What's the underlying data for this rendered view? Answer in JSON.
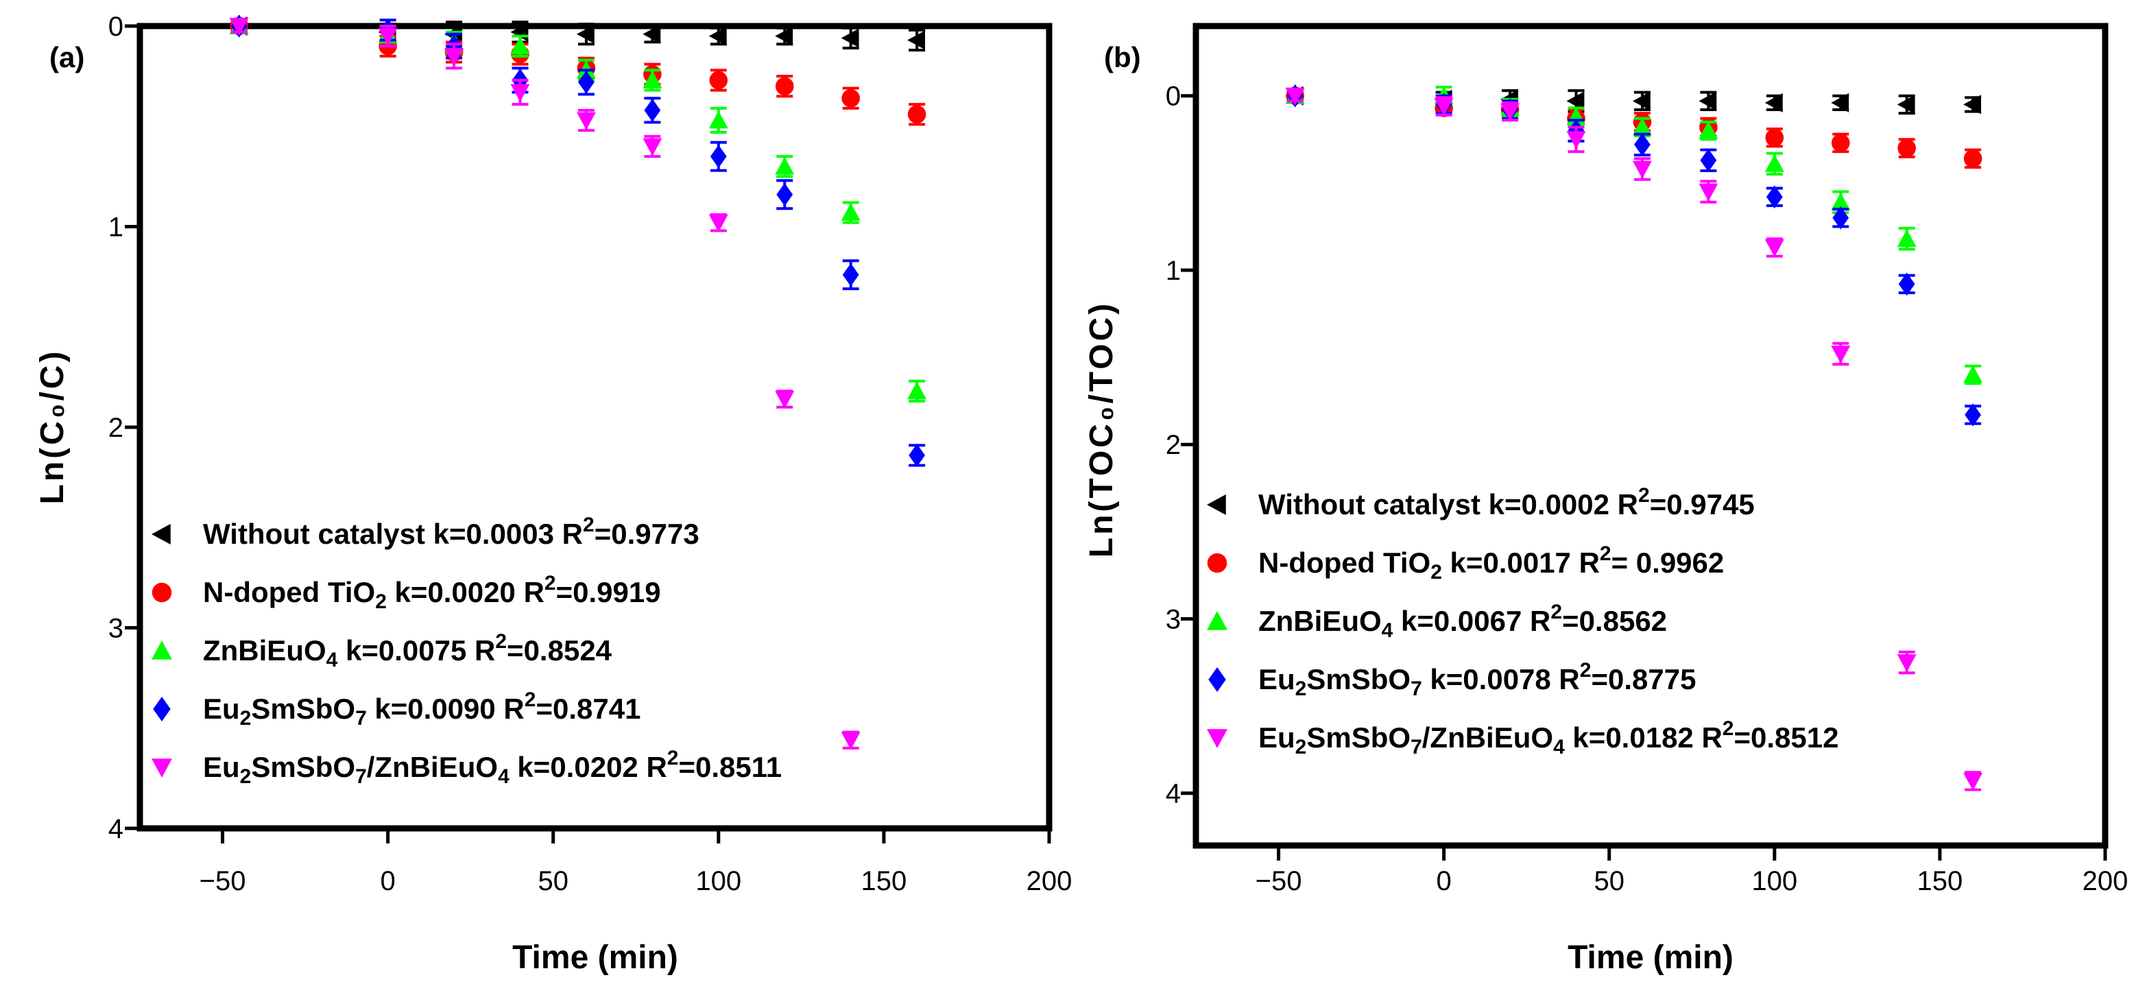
{
  "chart_data": [
    {
      "panel_label": "(a)",
      "type": "scatter",
      "xlabel": "Time (min)",
      "ylabel": "Ln(C₀/C)",
      "xlim": [
        -75,
        200
      ],
      "ylim": [
        0,
        4
      ],
      "y_inverted": true,
      "x_ticks": [
        -50,
        0,
        50,
        100,
        150,
        200
      ],
      "x_tick_labels": [
        "−50",
        "0",
        "50",
        "100",
        "150",
        "200"
      ],
      "y_ticks": [
        0,
        1,
        2,
        3,
        4
      ],
      "y_tick_labels": [
        "0",
        "1",
        "2",
        "3",
        "4"
      ],
      "grid": false,
      "legend_position": "lower-left",
      "x": [
        -45,
        0,
        20,
        40,
        60,
        80,
        100,
        120,
        140,
        160
      ],
      "series": [
        {
          "name": "Without catalyst",
          "name_parts": [
            [
              "Without catalyst",
              ""
            ]
          ],
          "k": "k=0.0003",
          "r2": "0.9773",
          "r2_text": "=0.9773",
          "marker": "triangle-left",
          "color": "#000000",
          "values": [
            0,
            0.03,
            0.04,
            0.03,
            0.04,
            0.04,
            0.05,
            0.05,
            0.06,
            0.07
          ],
          "errors": [
            0.03,
            0.04,
            0.06,
            0.05,
            0.05,
            0.04,
            0.04,
            0.04,
            0.05,
            0.05
          ]
        },
        {
          "name": "N-doped TiO2",
          "name_parts": [
            [
              "N-doped TiO",
              ""
            ],
            [
              "2",
              "sub"
            ]
          ],
          "k": "k=0.0020",
          "r2": "0.9919",
          "r2_text": "=0.9919",
          "marker": "circle",
          "color": "#ff0000",
          "values": [
            0,
            0.1,
            0.13,
            0.14,
            0.21,
            0.24,
            0.27,
            0.3,
            0.36,
            0.44
          ],
          "errors": [
            0.03,
            0.05,
            0.05,
            0.05,
            0.05,
            0.05,
            0.05,
            0.05,
            0.05,
            0.05
          ]
        },
        {
          "name": "ZnBiEuO4",
          "name_parts": [
            [
              "ZnBiEuO",
              ""
            ],
            [
              "4",
              "sub"
            ]
          ],
          "k": "k=0.0075",
          "r2": "0.8524",
          "r2_text": "=0.8524",
          "marker": "triangle-up",
          "color": "#00ff00",
          "values": [
            0,
            0.04,
            0.08,
            0.1,
            0.22,
            0.27,
            0.47,
            0.7,
            0.93,
            1.82
          ],
          "errors": [
            0.03,
            0.04,
            0.05,
            0.05,
            0.05,
            0.05,
            0.06,
            0.05,
            0.05,
            0.05
          ]
        },
        {
          "name": "Eu2SmSbO7",
          "name_parts": [
            [
              "Eu",
              ""
            ],
            [
              "2",
              "sub"
            ],
            [
              "SmSbO",
              ""
            ],
            [
              "7",
              "sub"
            ]
          ],
          "k": "k=0.0090",
          "r2": "0.8741",
          "r2_text": "=0.8741",
          "marker": "diamond",
          "color": "#0000ff",
          "values": [
            0,
            0.02,
            0.1,
            0.27,
            0.28,
            0.42,
            0.65,
            0.84,
            1.24,
            2.14
          ],
          "errors": [
            0.03,
            0.05,
            0.06,
            0.06,
            0.06,
            0.06,
            0.07,
            0.07,
            0.07,
            0.05
          ]
        },
        {
          "name": "Eu2SmSbO7/ZnBiEuO4",
          "name_parts": [
            [
              "Eu",
              ""
            ],
            [
              "2",
              "sub"
            ],
            [
              "SmSbO",
              ""
            ],
            [
              "7",
              "sub"
            ],
            [
              "/ZnBiEuO",
              ""
            ],
            [
              "4",
              "sub"
            ]
          ],
          "k": "k=0.0202",
          "r2": "0.8511",
          "r2_text": "=0.8511",
          "marker": "triangle-down",
          "color": "#ff00ff",
          "values": [
            0,
            0.05,
            0.15,
            0.33,
            0.47,
            0.6,
            0.98,
            1.86,
            3.56,
            null
          ],
          "errors": [
            0.03,
            0.05,
            0.06,
            0.06,
            0.05,
            0.05,
            0.04,
            0.04,
            0.04,
            null
          ]
        }
      ]
    },
    {
      "panel_label": "(b)",
      "type": "scatter",
      "xlabel": "Time (min)",
      "ylabel": "Ln(TOC₀/TOC)",
      "xlim": [
        -75,
        200
      ],
      "ylim": [
        -0.4,
        4.3
      ],
      "y_inverted": true,
      "x_ticks": [
        -50,
        0,
        50,
        100,
        150,
        200
      ],
      "x_tick_labels": [
        "−50",
        "0",
        "50",
        "100",
        "150",
        "200"
      ],
      "y_ticks": [
        0,
        1,
        2,
        3,
        4
      ],
      "y_tick_labels": [
        "0",
        "1",
        "2",
        "3",
        "4"
      ],
      "grid": false,
      "legend_position": "lower-left",
      "x": [
        -45,
        0,
        20,
        40,
        60,
        80,
        100,
        120,
        140,
        160
      ],
      "series": [
        {
          "name": "Without catalyst",
          "name_parts": [
            [
              "Without catalyst",
              ""
            ]
          ],
          "k": "k=0.0002",
          "r2": "0.9745",
          "r2_text": "=0.9745",
          "marker": "triangle-left",
          "color": "#000000",
          "values": [
            0,
            0.02,
            0.02,
            0.03,
            0.03,
            0.03,
            0.04,
            0.04,
            0.05,
            0.05
          ],
          "errors": [
            0.03,
            0.04,
            0.05,
            0.06,
            0.05,
            0.05,
            0.04,
            0.04,
            0.05,
            0.04
          ]
        },
        {
          "name": "N-doped TiO2",
          "name_parts": [
            [
              "N-doped TiO",
              ""
            ],
            [
              "2",
              "sub"
            ]
          ],
          "k": "k=0.0017",
          "r2": "0.9962",
          "r2_text": "= 0.9962",
          "marker": "circle",
          "color": "#ff0000",
          "values": [
            0,
            0.07,
            0.08,
            0.13,
            0.15,
            0.18,
            0.24,
            0.27,
            0.3,
            0.36
          ],
          "errors": [
            0.03,
            0.04,
            0.04,
            0.05,
            0.05,
            0.05,
            0.05,
            0.05,
            0.05,
            0.05
          ]
        },
        {
          "name": "ZnBiEuO4",
          "name_parts": [
            [
              "ZnBiEuO",
              ""
            ],
            [
              "4",
              "sub"
            ]
          ],
          "k": "k=0.0067",
          "r2": "0.8562",
          "r2_text": "=0.8562",
          "marker": "triangle-up",
          "color": "#00ff00",
          "values": [
            0,
            0.0,
            0.07,
            0.12,
            0.18,
            0.2,
            0.39,
            0.61,
            0.82,
            1.6
          ],
          "errors": [
            0.03,
            0.05,
            0.05,
            0.05,
            0.05,
            0.05,
            0.06,
            0.06,
            0.06,
            0.05
          ]
        },
        {
          "name": "Eu2SmSbO7",
          "name_parts": [
            [
              "Eu",
              ""
            ],
            [
              "2",
              "sub"
            ],
            [
              "SmSbO",
              ""
            ],
            [
              "7",
              "sub"
            ]
          ],
          "k": "k=0.0078",
          "r2": "0.8775",
          "r2_text": "=0.8775",
          "marker": "diamond",
          "color": "#0000ff",
          "values": [
            0,
            0.05,
            0.08,
            0.2,
            0.28,
            0.37,
            0.58,
            0.7,
            1.08,
            1.83
          ],
          "errors": [
            0.03,
            0.05,
            0.05,
            0.06,
            0.06,
            0.06,
            0.05,
            0.05,
            0.05,
            0.05
          ]
        },
        {
          "name": "Eu2SmSbO7/ZnBiEuO4",
          "name_parts": [
            [
              "Eu",
              ""
            ],
            [
              "2",
              "sub"
            ],
            [
              "SmSbO",
              ""
            ],
            [
              "7",
              "sub"
            ],
            [
              "/ZnBiEuO",
              ""
            ],
            [
              "4",
              "sub"
            ]
          ],
          "k": "k=0.0182",
          "r2": "0.8512",
          "r2_text": "=0.8512",
          "marker": "triangle-down",
          "color": "#ff00ff",
          "values": [
            0,
            0.06,
            0.09,
            0.25,
            0.42,
            0.55,
            0.87,
            1.48,
            3.25,
            3.93
          ],
          "errors": [
            0.03,
            0.05,
            0.05,
            0.07,
            0.06,
            0.06,
            0.05,
            0.06,
            0.06,
            0.05
          ]
        }
      ]
    }
  ]
}
